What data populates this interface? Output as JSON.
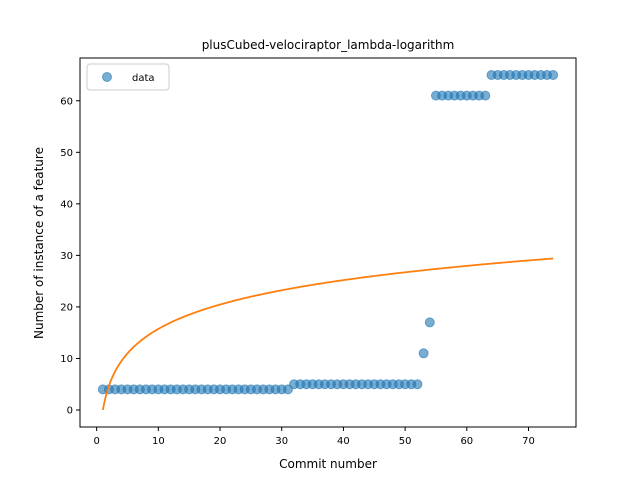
{
  "chart_data": {
    "type": "scatter",
    "title": "plusCubed-velociraptor_lambda-logarithm",
    "xlabel": "Commit number",
    "ylabel": "Number of instance of a feature",
    "xlim": [
      -2.7,
      77.7
    ],
    "ylim": [
      -3.3,
      68.3
    ],
    "xticks": [
      0,
      10,
      20,
      30,
      40,
      50,
      60,
      70
    ],
    "yticks": [
      0,
      10,
      20,
      30,
      40,
      50,
      60
    ],
    "legend": {
      "location": "upper-left",
      "entries": [
        "data"
      ]
    },
    "grid": false,
    "series": [
      {
        "name": "data",
        "kind": "scatter",
        "color": "#1f77b4",
        "x": [
          1,
          2,
          3,
          4,
          5,
          6,
          7,
          8,
          9,
          10,
          11,
          12,
          13,
          14,
          15,
          16,
          17,
          18,
          19,
          20,
          21,
          22,
          23,
          24,
          25,
          26,
          27,
          28,
          29,
          30,
          31,
          32,
          33,
          34,
          35,
          36,
          37,
          38,
          39,
          40,
          41,
          42,
          43,
          44,
          45,
          46,
          47,
          48,
          49,
          50,
          51,
          52,
          53,
          54,
          55,
          56,
          57,
          58,
          59,
          60,
          61,
          62,
          63,
          64,
          65,
          66,
          67,
          68,
          69,
          70,
          71,
          72,
          73,
          74
        ],
        "y": [
          4,
          4,
          4,
          4,
          4,
          4,
          4,
          4,
          4,
          4,
          4,
          4,
          4,
          4,
          4,
          4,
          4,
          4,
          4,
          4,
          4,
          4,
          4,
          4,
          4,
          4,
          4,
          4,
          4,
          4,
          4,
          5,
          5,
          5,
          5,
          5,
          5,
          5,
          5,
          5,
          5,
          5,
          5,
          5,
          5,
          5,
          5,
          5,
          5,
          5,
          5,
          5,
          11,
          17,
          61,
          61,
          61,
          61,
          61,
          61,
          61,
          61,
          61,
          65,
          65,
          65,
          65,
          65,
          65,
          65,
          65,
          65,
          65,
          65
        ]
      },
      {
        "kind": "line",
        "color": "#ff7f0e",
        "model": "a + b*ln(x)",
        "coefficients": {
          "a": 0.0,
          "b": 6.83
        },
        "x_range": [
          1,
          74
        ]
      }
    ]
  }
}
